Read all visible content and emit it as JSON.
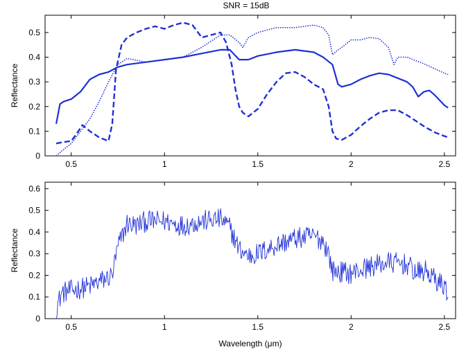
{
  "chart_data": [
    {
      "type": "line",
      "title": "SNR = 15dB",
      "xlabel": "",
      "ylabel": "Reflectance",
      "xlim": [
        0.36,
        2.56
      ],
      "ylim": [
        0,
        0.57
      ],
      "xticks": [
        0.5,
        1,
        1.5,
        2,
        2.5
      ],
      "xtick_labels": [
        "0.5",
        "1",
        "1.5",
        "2",
        "2.5"
      ],
      "yticks": [
        0,
        0.1,
        0.2,
        0.3,
        0.4,
        0.5
      ],
      "ytick_labels": [
        "0",
        "0.1",
        "0.2",
        "0.3",
        "0.4",
        "0.5"
      ],
      "grid": false,
      "line_color": "#1f2fd6",
      "series": [
        {
          "style": "solid",
          "x": [
            0.42,
            0.44,
            0.46,
            0.5,
            0.55,
            0.6,
            0.65,
            0.7,
            0.75,
            0.8,
            0.9,
            1.0,
            1.1,
            1.2,
            1.3,
            1.35,
            1.4,
            1.45,
            1.5,
            1.6,
            1.7,
            1.8,
            1.85,
            1.9,
            1.93,
            1.95,
            2.0,
            2.05,
            2.1,
            2.15,
            2.2,
            2.25,
            2.3,
            2.33,
            2.36,
            2.39,
            2.42,
            2.45,
            2.5,
            2.52
          ],
          "y": [
            0.13,
            0.21,
            0.22,
            0.23,
            0.26,
            0.31,
            0.33,
            0.34,
            0.36,
            0.37,
            0.38,
            0.39,
            0.4,
            0.415,
            0.43,
            0.43,
            0.39,
            0.39,
            0.405,
            0.42,
            0.43,
            0.42,
            0.4,
            0.37,
            0.29,
            0.28,
            0.29,
            0.31,
            0.325,
            0.335,
            0.33,
            0.315,
            0.3,
            0.28,
            0.24,
            0.26,
            0.265,
            0.245,
            0.205,
            0.195
          ]
        },
        {
          "style": "dashed",
          "x": [
            0.42,
            0.45,
            0.5,
            0.53,
            0.56,
            0.6,
            0.65,
            0.7,
            0.72,
            0.74,
            0.77,
            0.8,
            0.85,
            0.9,
            0.95,
            1.0,
            1.05,
            1.1,
            1.15,
            1.2,
            1.25,
            1.3,
            1.33,
            1.36,
            1.38,
            1.4,
            1.42,
            1.45,
            1.5,
            1.55,
            1.6,
            1.65,
            1.7,
            1.75,
            1.8,
            1.85,
            1.88,
            1.9,
            1.92,
            1.95,
            2.0,
            2.05,
            2.1,
            2.15,
            2.2,
            2.25,
            2.3,
            2.35,
            2.4,
            2.45,
            2.5,
            2.52
          ],
          "y": [
            0.05,
            0.055,
            0.06,
            0.09,
            0.125,
            0.1,
            0.075,
            0.06,
            0.13,
            0.35,
            0.45,
            0.48,
            0.5,
            0.515,
            0.525,
            0.515,
            0.53,
            0.54,
            0.53,
            0.48,
            0.49,
            0.5,
            0.46,
            0.37,
            0.27,
            0.2,
            0.175,
            0.16,
            0.19,
            0.25,
            0.3,
            0.335,
            0.34,
            0.32,
            0.29,
            0.27,
            0.2,
            0.1,
            0.07,
            0.065,
            0.085,
            0.12,
            0.15,
            0.175,
            0.185,
            0.185,
            0.165,
            0.14,
            0.115,
            0.095,
            0.08,
            0.075
          ]
        },
        {
          "style": "dotted",
          "x": [
            0.42,
            0.45,
            0.5,
            0.55,
            0.6,
            0.65,
            0.7,
            0.75,
            0.8,
            0.9,
            1.0,
            1.1,
            1.2,
            1.3,
            1.35,
            1.4,
            1.42,
            1.45,
            1.5,
            1.6,
            1.7,
            1.8,
            1.85,
            1.88,
            1.9,
            1.93,
            1.96,
            2.0,
            2.05,
            2.1,
            2.15,
            2.2,
            2.23,
            2.25,
            2.3,
            2.4,
            2.5,
            2.52
          ],
          "y": [
            0.0,
            0.02,
            0.05,
            0.1,
            0.15,
            0.22,
            0.3,
            0.37,
            0.395,
            0.38,
            0.39,
            0.4,
            0.44,
            0.49,
            0.49,
            0.46,
            0.44,
            0.48,
            0.5,
            0.52,
            0.52,
            0.53,
            0.52,
            0.49,
            0.41,
            0.43,
            0.445,
            0.47,
            0.47,
            0.48,
            0.475,
            0.44,
            0.37,
            0.4,
            0.4,
            0.37,
            0.335,
            0.33
          ]
        }
      ]
    },
    {
      "type": "line",
      "title": "",
      "xlabel": "Wavelength (μm)",
      "ylabel": "Reflectance",
      "xlim": [
        0.36,
        2.56
      ],
      "ylim": [
        0,
        0.63
      ],
      "xticks": [
        0.5,
        1,
        1.5,
        2,
        2.5
      ],
      "xtick_labels": [
        "0.5",
        "1",
        "1.5",
        "2",
        "2.5"
      ],
      "yticks": [
        0,
        0.1,
        0.2,
        0.3,
        0.4,
        0.5,
        0.6
      ],
      "ytick_labels": [
        "0",
        "0.1",
        "0.2",
        "0.3",
        "0.4",
        "0.5",
        "0.6"
      ],
      "grid": false,
      "line_color": "#1f2fd6",
      "series": [
        {
          "style": "solid-noisy",
          "x": [
            0.42,
            0.45,
            0.5,
            0.55,
            0.6,
            0.65,
            0.7,
            0.72,
            0.75,
            0.8,
            0.85,
            0.9,
            1.0,
            1.1,
            1.2,
            1.3,
            1.35,
            1.4,
            1.45,
            1.5,
            1.6,
            1.7,
            1.8,
            1.85,
            1.88,
            1.9,
            2.0,
            2.1,
            2.2,
            2.3,
            2.35,
            2.4,
            2.45,
            2.5,
            2.52
          ],
          "y": [
            0.05,
            0.12,
            0.13,
            0.14,
            0.15,
            0.17,
            0.19,
            0.2,
            0.33,
            0.44,
            0.43,
            0.45,
            0.45,
            0.43,
            0.45,
            0.46,
            0.42,
            0.32,
            0.29,
            0.3,
            0.34,
            0.37,
            0.38,
            0.36,
            0.3,
            0.22,
            0.21,
            0.24,
            0.26,
            0.25,
            0.21,
            0.22,
            0.18,
            0.15,
            0.12
          ],
          "noise_amplitude": 0.05
        }
      ]
    }
  ]
}
